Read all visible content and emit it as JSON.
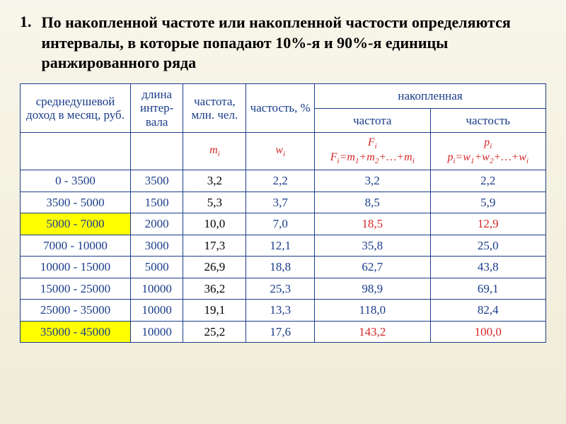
{
  "number": "1.",
  "title": "По накопленной частоте или накопленной частости определяются интервалы, в которые попадают 10%-я и 90%-я единицы ранжированного ряда",
  "headers": {
    "income": "среднедушевой доход в месяц, руб.",
    "interval_length": "длина интер-вала",
    "frequency": "частота, млн. чел.",
    "relative": "частость, %",
    "cumulative": "накопленная",
    "cum_freq": "частота",
    "cum_rel": "частость"
  },
  "symbols": {
    "mi": "m",
    "wi": "w",
    "Fi_top": "F",
    "Fi_formula_a": "F",
    "Fi_formula_b": "=m",
    "Fi_formula_c": "+m",
    "Fi_formula_d": "+…+m",
    "pi_top": "p",
    "pi_formula_a": "p",
    "pi_formula_b": "=w",
    "pi_formula_c": "+w",
    "pi_formula_d": "+…+w"
  },
  "rows": [
    {
      "income": "0 - 3500",
      "len": "3500",
      "mi": "3,2",
      "wi": "2,2",
      "Fi": "3,2",
      "pi": "2,2",
      "hl": false,
      "red": false
    },
    {
      "income": "3500 - 5000",
      "len": "1500",
      "mi": "5,3",
      "wi": "3,7",
      "Fi": "8,5",
      "pi": "5,9",
      "hl": false,
      "red": false
    },
    {
      "income": "5000 - 7000",
      "len": "2000",
      "mi": "10,0",
      "wi": "7,0",
      "Fi": "18,5",
      "pi": "12,9",
      "hl": true,
      "red": true
    },
    {
      "income": "7000 - 10000",
      "len": "3000",
      "mi": "17,3",
      "wi": "12,1",
      "Fi": "35,8",
      "pi": "25,0",
      "hl": false,
      "red": false
    },
    {
      "income": "10000 - 15000",
      "len": "5000",
      "mi": "26,9",
      "wi": "18,8",
      "Fi": "62,7",
      "pi": "43,8",
      "hl": false,
      "red": false
    },
    {
      "income": "15000 - 25000",
      "len": "10000",
      "mi": "36,2",
      "wi": "25,3",
      "Fi": "98,9",
      "pi": "69,1",
      "hl": false,
      "red": false
    },
    {
      "income": "25000 - 35000",
      "len": "10000",
      "mi": "19,1",
      "wi": "13,3",
      "Fi": "118,0",
      "pi": "82,4",
      "hl": false,
      "red": false
    },
    {
      "income": "35000 - 45000",
      "len": "10000",
      "mi": "25,2",
      "wi": "17,6",
      "Fi": "143,2",
      "pi": "100,0",
      "hl": true,
      "red": true
    }
  ],
  "colors": {
    "border": "#1a3c8a",
    "text": "#1a3c8a",
    "red": "#d62828",
    "highlight": "#ffff00",
    "bg_top": "#f8f6ea",
    "bg_bottom": "#f0ecd8"
  },
  "table_style": {
    "font_family": "Times New Roman",
    "cell_fontsize": 17,
    "title_fontsize": 22
  }
}
